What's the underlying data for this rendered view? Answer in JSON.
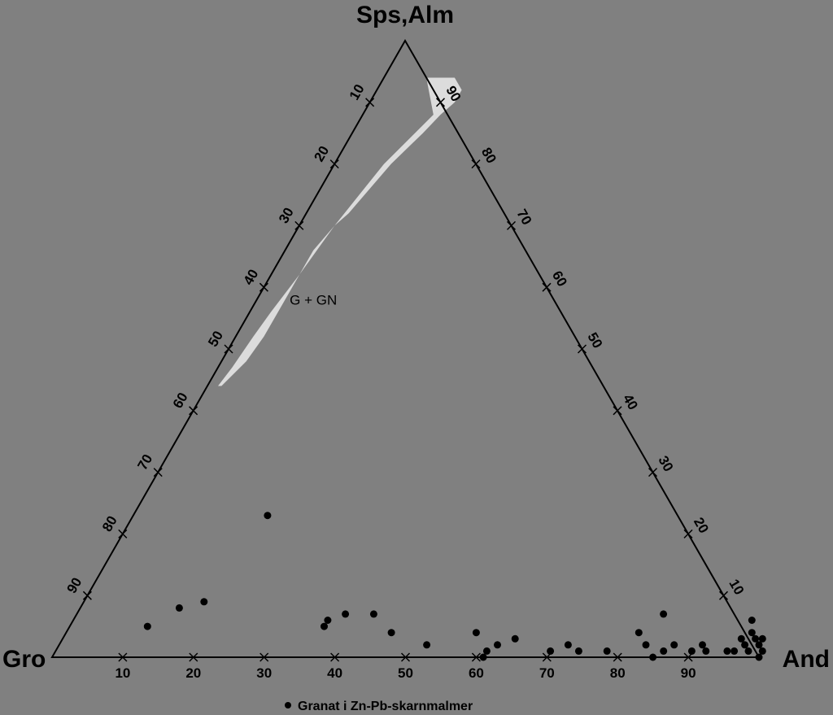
{
  "chart_data": {
    "type": "scatter",
    "subtype": "ternary",
    "vertices": {
      "top": "Sps,Alm",
      "left": "Gro",
      "right": "And"
    },
    "axis_ticks": {
      "bottom": [
        "10",
        "20",
        "30",
        "40",
        "50",
        "60",
        "70",
        "80",
        "90"
      ],
      "left": [
        "10",
        "20",
        "30",
        "40",
        "50",
        "60",
        "70",
        "80",
        "90"
      ],
      "right": [
        "10",
        "20",
        "30",
        "40",
        "50",
        "60",
        "70",
        "80",
        "90"
      ]
    },
    "region": {
      "label": "G + GN",
      "fill": "#dcdcdc",
      "outline_and": [
        6,
        10,
        12,
        12,
        11,
        10,
        8,
        6,
        5,
        4,
        4,
        4,
        4,
        3.5,
        2,
        1.5,
        2,
        2.5,
        3,
        4,
        5,
        6,
        7,
        10
      ],
      "outline_sps": [
        94,
        94,
        92,
        90,
        88,
        85,
        80,
        72,
        70,
        66,
        63,
        58,
        52,
        48,
        44,
        44,
        47,
        52,
        56,
        62,
        70,
        75,
        80,
        88
      ]
    },
    "series": [
      {
        "name": "Granat i Zn-Pb-skarnmalmer",
        "color": "#000000",
        "points": [
          {
            "and": 19,
            "sps": 23
          },
          {
            "and": 14,
            "sps": 8
          },
          {
            "and": 17,
            "sps": 9
          },
          {
            "and": 11,
            "sps": 5
          },
          {
            "and": 36,
            "sps": 6
          },
          {
            "and": 38,
            "sps": 7
          },
          {
            "and": 36,
            "sps": 5
          },
          {
            "and": 42,
            "sps": 7
          },
          {
            "and": 46,
            "sps": 4
          },
          {
            "and": 52,
            "sps": 2
          },
          {
            "and": 58,
            "sps": 4
          },
          {
            "and": 61,
            "sps": 1
          },
          {
            "and": 61,
            "sps": 0
          },
          {
            "and": 62,
            "sps": 2
          },
          {
            "and": 64,
            "sps": 3
          },
          {
            "and": 70,
            "sps": 1
          },
          {
            "and": 72,
            "sps": 2
          },
          {
            "and": 74,
            "sps": 1
          },
          {
            "and": 78,
            "sps": 1
          },
          {
            "and": 81,
            "sps": 4
          },
          {
            "and": 83,
            "sps": 7
          },
          {
            "and": 83,
            "sps": 2
          },
          {
            "and": 87,
            "sps": 2
          },
          {
            "and": 86,
            "sps": 1
          },
          {
            "and": 85,
            "sps": 0
          },
          {
            "and": 91,
            "sps": 2
          },
          {
            "and": 90,
            "sps": 1
          },
          {
            "and": 92,
            "sps": 1
          },
          {
            "and": 96,
            "sps": 6
          },
          {
            "and": 96,
            "sps": 3
          },
          {
            "and": 97,
            "sps": 4
          },
          {
            "and": 95,
            "sps": 1
          },
          {
            "and": 96,
            "sps": 1
          },
          {
            "and": 97,
            "sps": 2
          },
          {
            "and": 98,
            "sps": 3
          },
          {
            "and": 99,
            "sps": 3
          },
          {
            "and": 99,
            "sps": 2
          },
          {
            "and": 98,
            "sps": 1
          },
          {
            "and": 100,
            "sps": 1
          },
          {
            "and": 100,
            "sps": 0
          }
        ]
      }
    ],
    "legend_placement": "bottom-center"
  }
}
